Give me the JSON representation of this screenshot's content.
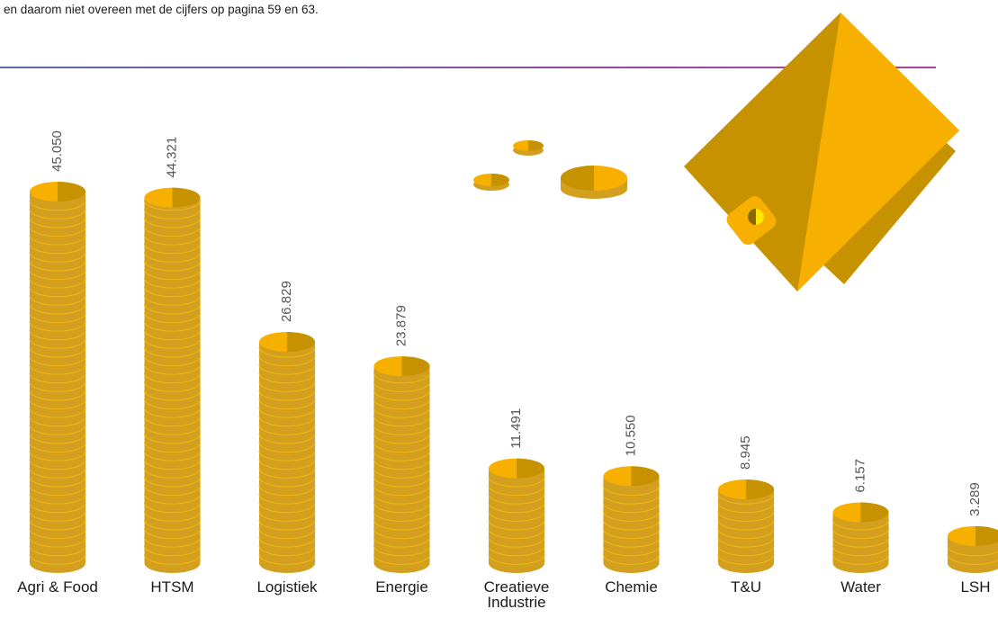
{
  "note": "en daarom niet overeen met de cijfers op pagina 59 en 63.",
  "chart_data": {
    "type": "bar",
    "categories": [
      "Agri & Food",
      "HTSM",
      "Logistiek",
      "Energie",
      "Creatieve Industrie",
      "Chemie",
      "T&U",
      "Water",
      "LSH"
    ],
    "values": [
      45050,
      44321,
      26829,
      23879,
      11491,
      10550,
      8945,
      6157,
      3289
    ],
    "value_labels": [
      "45.050",
      "44.321",
      "26.829",
      "23.879",
      "11.491",
      "10.550",
      "8.945",
      "6.157",
      "3.289"
    ],
    "title": "",
    "xlabel": "",
    "ylabel": ""
  },
  "colors": {
    "coin_face_light": "#F8B000",
    "coin_face_dark": "#C69200",
    "coin_side": "#D29F1F",
    "coin_edge_line": "#F0B313",
    "value_text": "#555555",
    "category_text": "#1a1a1a"
  },
  "decoration": {
    "icon": "coin-purse-icon"
  }
}
